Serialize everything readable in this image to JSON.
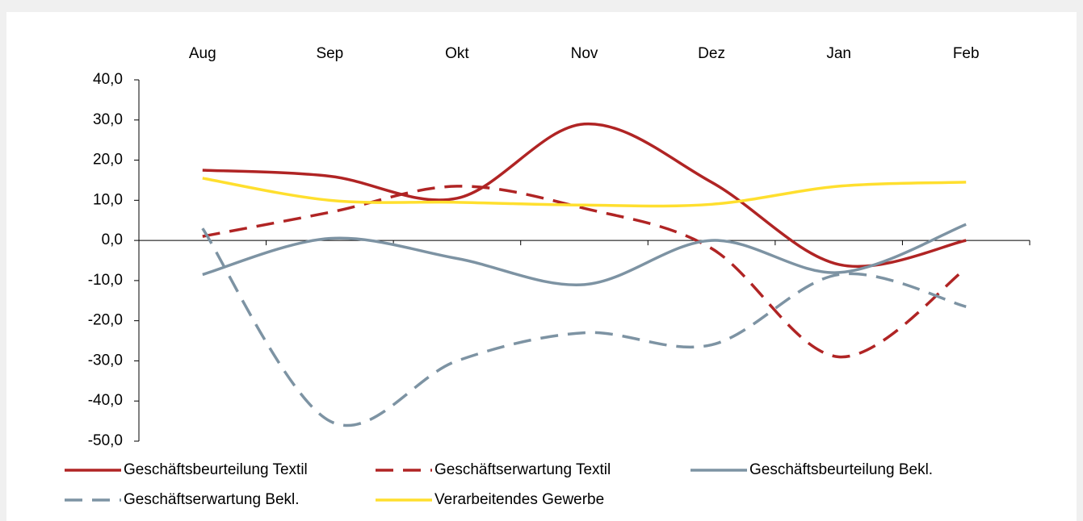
{
  "chart_data": {
    "type": "line",
    "categories": [
      "Aug",
      "Sep",
      "Okt",
      "Nov",
      "Dez",
      "Jan",
      "Feb"
    ],
    "series": [
      {
        "name": "Geschäftsbeurteilung Textil",
        "color": "#b02424",
        "dashed": false,
        "values": [
          17.5,
          16,
          10.5,
          29,
          14.5,
          -6,
          0
        ]
      },
      {
        "name": "Geschäftserwartung Textil",
        "color": "#b02424",
        "dashed": true,
        "values": [
          1,
          7,
          13.5,
          8,
          -2,
          -29,
          -7
        ]
      },
      {
        "name": "Geschäftsbeurteilung Bekl.",
        "color": "#7d93a3",
        "dashed": false,
        "values": [
          -8.5,
          0.5,
          -4.5,
          -11,
          0,
          -8,
          4
        ]
      },
      {
        "name": "Geschäftserwartung Bekl.",
        "color": "#7d93a3",
        "dashed": true,
        "values": [
          3,
          -45,
          -30,
          -23,
          -26,
          -8.5,
          -16.5
        ]
      },
      {
        "name": "Verarbeitendes Gewerbe",
        "color": "#ffdf2e",
        "dashed": false,
        "values": [
          15.5,
          10,
          9.5,
          8.8,
          9,
          13.5,
          14.5
        ]
      }
    ],
    "ylim": [
      -50,
      40
    ],
    "yticks": [
      {
        "value": -50,
        "label": "-50,0"
      },
      {
        "value": -40,
        "label": "-40,0"
      },
      {
        "value": -30,
        "label": "-30,0"
      },
      {
        "value": -20,
        "label": "-20,0"
      },
      {
        "value": -10,
        "label": "-10,0"
      },
      {
        "value": 0,
        "label": "0,0"
      },
      {
        "value": 10,
        "label": "10,0"
      },
      {
        "value": 20,
        "label": "20,0"
      },
      {
        "value": 30,
        "label": "30,0"
      },
      {
        "value": 40,
        "label": "40,0"
      }
    ],
    "legend": "bottom"
  }
}
